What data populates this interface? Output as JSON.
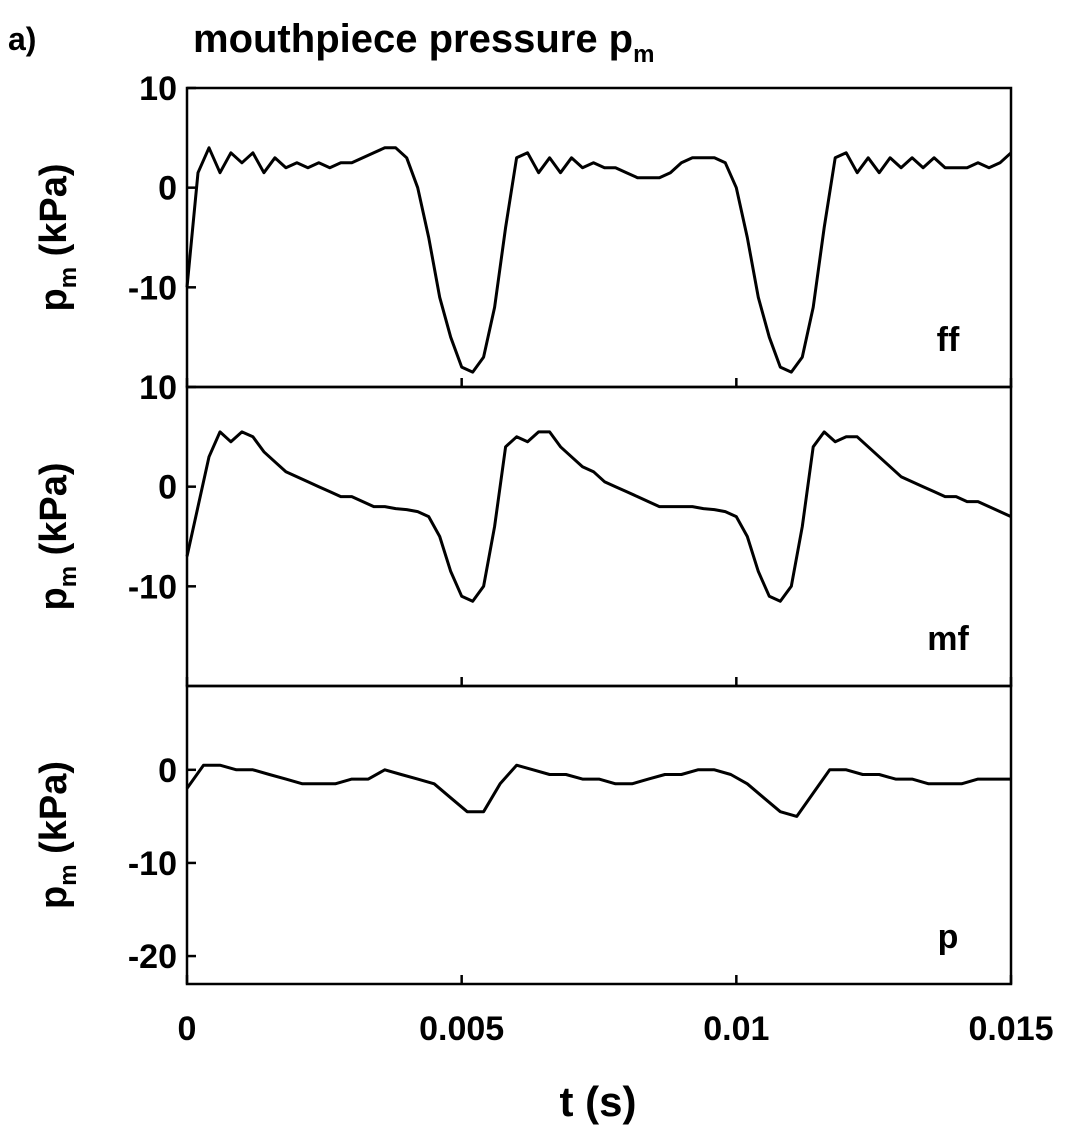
{
  "panel_letter": "a)",
  "title_main": "mouthpiece pressure p",
  "title_sub": "m",
  "chart_data": {
    "type": "line",
    "title": "mouthpiece pressure p_m",
    "xlabel": "t (s)",
    "xlim": [
      0,
      0.015
    ],
    "x_ticks": [
      0,
      0.005,
      0.01,
      0.015
    ],
    "x_tick_labels": [
      "0",
      "0.005",
      "0.01",
      "0.015"
    ],
    "panels": [
      {
        "tag": "ff",
        "ylabel_main": "p",
        "ylabel_sub": "m",
        "ylabel_rest": " (kPa)",
        "ylim": [
          -20,
          10
        ],
        "y_ticks": [
          10,
          0,
          -10
        ],
        "y_tick_labels": [
          "10",
          "0",
          "-10"
        ],
        "series": [
          {
            "x": [
              0,
              0.0002,
              0.0004,
              0.0006,
              0.0008,
              0.001,
              0.0012,
              0.0014,
              0.0016,
              0.0018,
              0.002,
              0.0022,
              0.0024,
              0.0026,
              0.0028,
              0.003,
              0.0032,
              0.0034,
              0.0036,
              0.0038,
              0.004,
              0.0042,
              0.0044,
              0.0046,
              0.0048,
              0.005,
              0.0052,
              0.0054,
              0.0056,
              0.0058,
              0.006,
              0.0062,
              0.0064,
              0.0066,
              0.0068,
              0.007,
              0.0072,
              0.0074,
              0.0076,
              0.0078,
              0.008,
              0.0082,
              0.0084,
              0.0086,
              0.0088,
              0.009,
              0.0092,
              0.0094,
              0.0096,
              0.0098,
              0.01,
              0.0102,
              0.0104,
              0.0106,
              0.0108,
              0.011,
              0.0112,
              0.0114,
              0.0116,
              0.0118,
              0.012,
              0.0122,
              0.0124,
              0.0126,
              0.0128,
              0.013,
              0.0132,
              0.0134,
              0.0136,
              0.0138,
              0.014,
              0.0142,
              0.0144,
              0.0146,
              0.0148,
              0.015
            ],
            "y": [
              -10,
              1.5,
              4,
              1.5,
              3.5,
              2.5,
              3.5,
              1.5,
              3,
              2,
              2.5,
              2,
              2.5,
              2,
              2.5,
              2.5,
              3,
              3.5,
              4,
              4,
              3,
              0,
              -5,
              -11,
              -15,
              -18,
              -18.5,
              -17,
              -12,
              -4,
              3,
              3.5,
              1.5,
              3,
              1.5,
              3,
              2,
              2.5,
              2,
              2,
              1.5,
              1,
              1,
              1,
              1.5,
              2.5,
              3,
              3,
              3,
              2.5,
              0,
              -5,
              -11,
              -15,
              -18,
              -18.5,
              -17,
              -12,
              -4,
              3,
              3.5,
              1.5,
              3,
              1.5,
              3,
              2,
              3,
              2,
              3,
              2,
              2,
              2,
              2.5,
              2,
              2.5,
              3.5
            ]
          }
        ]
      },
      {
        "tag": "mf",
        "ylabel_main": "p",
        "ylabel_sub": "m",
        "ylabel_rest": " (kPa)",
        "ylim": [
          -20,
          10
        ],
        "y_ticks": [
          10,
          0,
          -10
        ],
        "y_tick_labels": [
          "10",
          "0",
          "-10"
        ],
        "series": [
          {
            "x": [
              0,
              0.0002,
              0.0004,
              0.0006,
              0.0008,
              0.001,
              0.0012,
              0.0014,
              0.0016,
              0.0018,
              0.002,
              0.0022,
              0.0024,
              0.0026,
              0.0028,
              0.003,
              0.0032,
              0.0034,
              0.0036,
              0.0038,
              0.004,
              0.0042,
              0.0044,
              0.0046,
              0.0048,
              0.005,
              0.0052,
              0.0054,
              0.0056,
              0.0058,
              0.006,
              0.0062,
              0.0064,
              0.0066,
              0.0068,
              0.007,
              0.0072,
              0.0074,
              0.0076,
              0.0078,
              0.008,
              0.0082,
              0.0084,
              0.0086,
              0.0088,
              0.009,
              0.0092,
              0.0094,
              0.0096,
              0.0098,
              0.01,
              0.0102,
              0.0104,
              0.0106,
              0.0108,
              0.011,
              0.0112,
              0.0114,
              0.0116,
              0.0118,
              0.012,
              0.0122,
              0.0124,
              0.0126,
              0.0128,
              0.013,
              0.0132,
              0.0134,
              0.0136,
              0.0138,
              0.014,
              0.0142,
              0.0144,
              0.0146,
              0.0148,
              0.015
            ],
            "y": [
              -7,
              -2,
              3,
              5.5,
              4.5,
              5.5,
              5,
              3.5,
              2.5,
              1.5,
              1,
              0.5,
              0,
              -0.5,
              -1,
              -1,
              -1.5,
              -2,
              -2,
              -2.2,
              -2.3,
              -2.5,
              -3,
              -5,
              -8.5,
              -11,
              -11.5,
              -10,
              -4,
              4,
              5,
              4.5,
              5.5,
              5.5,
              4,
              3,
              2,
              1.5,
              0.5,
              0,
              -0.5,
              -1,
              -1.5,
              -2,
              -2,
              -2,
              -2,
              -2.2,
              -2.3,
              -2.5,
              -3,
              -5,
              -8.5,
              -11,
              -11.5,
              -10,
              -4,
              4,
              5.5,
              4.5,
              5,
              5,
              4,
              3,
              2,
              1,
              0.5,
              0,
              -0.5,
              -1,
              -1,
              -1.5,
              -1.5,
              -2,
              -2.5,
              -3
            ]
          }
        ]
      },
      {
        "tag": "p",
        "ylabel_main": "p",
        "ylabel_sub": "m",
        "ylabel_rest": " (kPa)",
        "ylim": [
          -23,
          9
        ],
        "y_ticks": [
          0,
          -10,
          -20
        ],
        "y_tick_labels": [
          "0",
          "-10",
          "-20"
        ],
        "series": [
          {
            "x": [
              0,
              0.0003,
              0.0006,
              0.0009,
              0.0012,
              0.0015,
              0.0018,
              0.0021,
              0.0024,
              0.0027,
              0.003,
              0.0033,
              0.0036,
              0.0039,
              0.0042,
              0.0045,
              0.0048,
              0.0051,
              0.0054,
              0.0057,
              0.006,
              0.0063,
              0.0066,
              0.0069,
              0.0072,
              0.0075,
              0.0078,
              0.0081,
              0.0084,
              0.0087,
              0.009,
              0.0093,
              0.0096,
              0.0099,
              0.0102,
              0.0105,
              0.0108,
              0.0111,
              0.0114,
              0.0117,
              0.012,
              0.0123,
              0.0126,
              0.0129,
              0.0132,
              0.0135,
              0.0138,
              0.0141,
              0.0144,
              0.0147,
              0.015
            ],
            "y": [
              -2,
              0.5,
              0.5,
              0,
              0,
              -0.5,
              -1,
              -1.5,
              -1.5,
              -1.5,
              -1,
              -1,
              0,
              -0.5,
              -1,
              -1.5,
              -3,
              -4.5,
              -4.5,
              -1.5,
              0.5,
              0,
              -0.5,
              -0.5,
              -1,
              -1,
              -1.5,
              -1.5,
              -1,
              -0.5,
              -0.5,
              0,
              0,
              -0.5,
              -1.5,
              -3,
              -4.5,
              -5,
              -2.5,
              0,
              0,
              -0.5,
              -0.5,
              -1,
              -1,
              -1.5,
              -1.5,
              -1.5,
              -1,
              -1,
              -1
            ]
          }
        ]
      }
    ]
  }
}
